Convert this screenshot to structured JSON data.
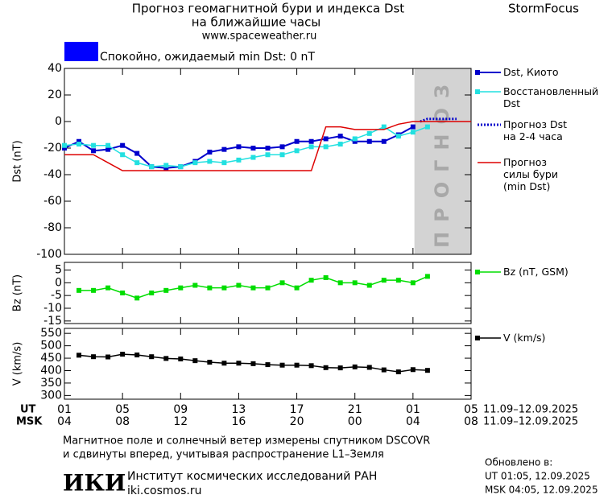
{
  "header": {
    "title_lines": [
      "Прогноз геомагнитной бури и индекса Dst",
      "на ближайшие часы"
    ],
    "url": "www.spaceweather.ru",
    "brand": "StormFocus",
    "status": {
      "text": "Спокойно, ожидаемый min Dst: 0 nT",
      "color": "#0000ff"
    }
  },
  "chart_data": [
    {
      "type": "line",
      "ylabel": "Dst (nT)",
      "xlim": [
        0,
        28
      ],
      "ylim": [
        -100,
        40
      ],
      "yticks": [
        40,
        20,
        0,
        -20,
        -40,
        -60,
        -80,
        -100
      ],
      "shade": {
        "x": [
          24.1,
          28
        ],
        "label": "ПРОГНОЗ",
        "color": "#d3d3d3"
      },
      "series": [
        {
          "name": "Dst, Киото",
          "color": "#0000cc",
          "marker": "square",
          "width": 2,
          "x": [
            0,
            1,
            2,
            3,
            4,
            5,
            6,
            7,
            8,
            9,
            10,
            11,
            12,
            13,
            14,
            15,
            16,
            17,
            18,
            19,
            20,
            21,
            22,
            23,
            24
          ],
          "values": [
            -20,
            -15,
            -22,
            -21,
            -18,
            -24,
            -34,
            -35,
            -34,
            -30,
            -23,
            -21,
            -19,
            -20,
            -20,
            -19,
            -15,
            -15,
            -13,
            -11,
            -15,
            -15,
            -15,
            -10,
            -4
          ]
        },
        {
          "name": "Восстановленный\nDst",
          "color": "#22e0e0",
          "marker": "square",
          "width": 1.5,
          "x": [
            0,
            1,
            2,
            3,
            4,
            5,
            6,
            7,
            8,
            9,
            10,
            11,
            12,
            13,
            14,
            15,
            16,
            17,
            18,
            19,
            20,
            21,
            22,
            23,
            24,
            25
          ],
          "values": [
            -18,
            -17,
            -18,
            -18,
            -25,
            -31,
            -34,
            -33,
            -34,
            -31,
            -30,
            -31,
            -29,
            -27,
            -25,
            -25,
            -22,
            -19,
            -19,
            -17,
            -13,
            -9,
            -4,
            -11,
            -8,
            -4
          ]
        },
        {
          "name": "Прогноз Dst\nна 2-4 часа",
          "color": "#0000cc",
          "dash": true,
          "width": 3,
          "x": [
            24.5,
            25,
            27
          ],
          "values": [
            0,
            2,
            2
          ]
        },
        {
          "name": "Прогноз\nсилы бури\n(min Dst)",
          "color": "#dd0000",
          "width": 1.5,
          "x": [
            0,
            2,
            4,
            17,
            18,
            19,
            20,
            22,
            23,
            24,
            28
          ],
          "values": [
            -25,
            -25,
            -37,
            -37,
            -4,
            -4,
            -6,
            -6,
            -2,
            0,
            0
          ]
        }
      ]
    },
    {
      "type": "line",
      "ylabel": "Bz (nT)",
      "xlim": [
        0,
        28
      ],
      "ylim": [
        -16,
        8
      ],
      "yticks": [
        5,
        0,
        -5,
        -10,
        -15
      ],
      "series": [
        {
          "name": "Bz (nT, GSM)",
          "color": "#00dd00",
          "marker": "square",
          "width": 1.5,
          "x": [
            1,
            2,
            3,
            4,
            5,
            6,
            7,
            8,
            9,
            10,
            11,
            12,
            13,
            14,
            15,
            16,
            17,
            18,
            19,
            20,
            21,
            22,
            23,
            24,
            25
          ],
          "values": [
            -3,
            -3,
            -2,
            -4,
            -6,
            -4,
            -3,
            -2,
            -1,
            -2,
            -2,
            -1,
            -2,
            -2,
            0,
            -2,
            1,
            2,
            0,
            0,
            -1,
            1,
            1,
            0,
            2.5
          ]
        }
      ]
    },
    {
      "type": "line",
      "ylabel": "V (km/s)",
      "xlim": [
        0,
        28
      ],
      "ylim": [
        285,
        570
      ],
      "yticks": [
        550,
        500,
        450,
        400,
        350,
        300
      ],
      "xticks": [
        {
          "value": 0,
          "label": "01"
        },
        {
          "value": 4,
          "label": "05"
        },
        {
          "value": 8,
          "label": "09"
        },
        {
          "value": 12,
          "label": "13"
        },
        {
          "value": 16,
          "label": "17"
        },
        {
          "value": 20,
          "label": "21"
        },
        {
          "value": 24,
          "label": "01"
        },
        {
          "value": 28,
          "label": "05"
        }
      ],
      "x2ticks": [
        {
          "value": 0,
          "label": "04"
        },
        {
          "value": 4,
          "label": "08"
        },
        {
          "value": 8,
          "label": "12"
        },
        {
          "value": 12,
          "label": "16"
        },
        {
          "value": 16,
          "label": "20"
        },
        {
          "value": 20,
          "label": "00"
        },
        {
          "value": 24,
          "label": "04"
        },
        {
          "value": 28,
          "label": "08"
        }
      ],
      "xlabel": "UT",
      "x2label": "MSK",
      "xrange_label": "11.09–12.09.2025",
      "x2range_label": "11.09–12.09.2025",
      "series": [
        {
          "name": "V (km/s)",
          "color": "#000000",
          "marker": "square",
          "width": 1.5,
          "x": [
            1,
            2,
            3,
            4,
            5,
            6,
            7,
            8,
            9,
            10,
            11,
            12,
            13,
            14,
            15,
            16,
            17,
            18,
            19,
            20,
            21,
            22,
            23,
            24,
            25
          ],
          "values": [
            462,
            456,
            455,
            466,
            463,
            456,
            449,
            447,
            440,
            434,
            430,
            430,
            428,
            424,
            422,
            422,
            420,
            412,
            411,
            415,
            413,
            403,
            395,
            404,
            401
          ]
        }
      ]
    }
  ],
  "footer": {
    "note_lines": [
      "Магнитное поле и солнечный ветер измерены спутником DSCOVR",
      "и сдвинуты вперед, учитывая распространение L1–Земля"
    ],
    "updated": "Обновлено в:",
    "updated_ut": "UT  01:05, 12.09.2025",
    "updated_msk": "MSK 04:05, 12.09.2025",
    "logo": "ИКИ",
    "institute": "Институт космических исследований РАН",
    "site": "iki.cosmos.ru"
  }
}
